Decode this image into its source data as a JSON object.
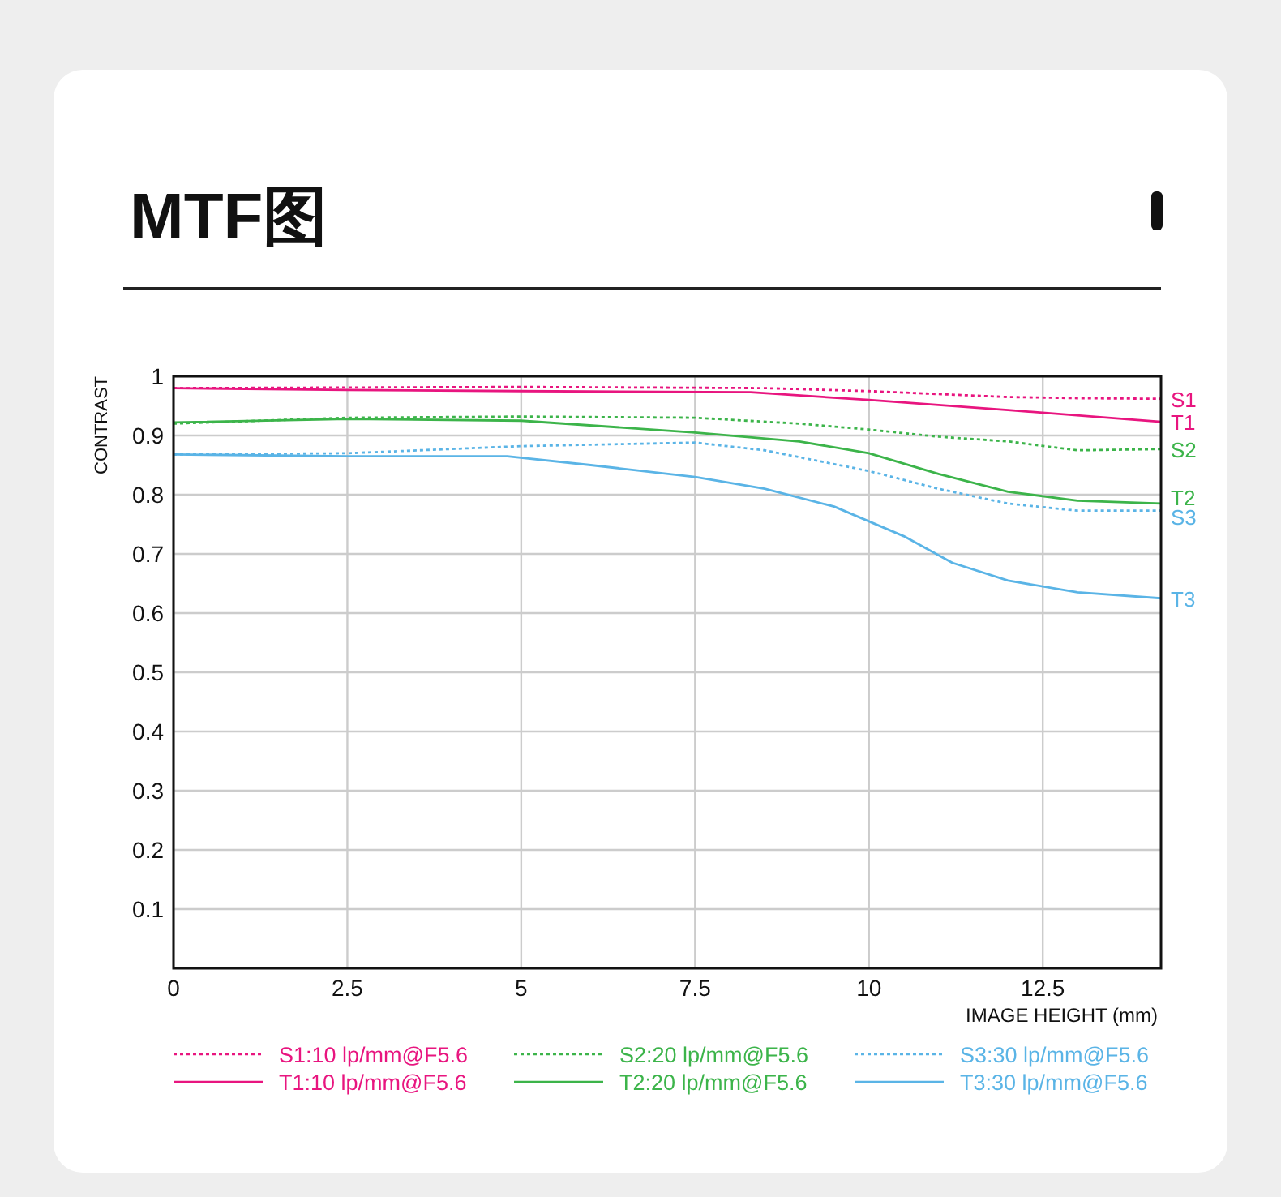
{
  "chart_data": {
    "type": "line",
    "title": "MTF图",
    "xlabel": "IMAGE HEIGHT (mm)",
    "ylabel": "CONTRAST",
    "xlim": [
      0,
      14.2
    ],
    "ylim": [
      0,
      1
    ],
    "xticks": [
      0,
      2.5,
      5,
      7.5,
      10,
      12.5
    ],
    "yticks": [
      0.1,
      0.2,
      0.3,
      0.4,
      0.5,
      0.6,
      0.7,
      0.8,
      0.9,
      1
    ],
    "grid": true,
    "legend": "bottom",
    "marker": "none",
    "series": [
      {
        "name": "S1:10 lp/mm@F5.6",
        "color": "#e8157f",
        "line_style": "dotted",
        "x": [
          0,
          5,
          8.5,
          10,
          12,
          13,
          14.2
        ],
        "values": [
          0.98,
          0.982,
          0.98,
          0.975,
          0.965,
          0.963,
          0.962
        ]
      },
      {
        "name": "T1:10 lp/mm@F5.6",
        "color": "#e8157f",
        "line_style": "solid",
        "x": [
          0,
          2.5,
          5,
          8.3,
          10,
          12,
          14.2
        ],
        "values": [
          0.98,
          0.977,
          0.975,
          0.973,
          0.96,
          0.943,
          0.923
        ]
      },
      {
        "name": "S2:20 lp/mm@F5.6",
        "color": "#3cb44a",
        "line_style": "dotted",
        "x": [
          0,
          2.5,
          5,
          7.5,
          9,
          10,
          11,
          12,
          13,
          14.2
        ],
        "values": [
          0.92,
          0.93,
          0.932,
          0.93,
          0.92,
          0.91,
          0.898,
          0.89,
          0.875,
          0.877
        ]
      },
      {
        "name": "T2:20 lp/mm@F5.6",
        "color": "#3cb44a",
        "line_style": "solid",
        "x": [
          0,
          2.5,
          5,
          7.5,
          9,
          10,
          11,
          12,
          13,
          14.2
        ],
        "values": [
          0.922,
          0.928,
          0.925,
          0.905,
          0.89,
          0.87,
          0.835,
          0.805,
          0.79,
          0.785
        ]
      },
      {
        "name": "S3:30 lp/mm@F5.6",
        "color": "#5ab4e6",
        "line_style": "dotted",
        "x": [
          0,
          2.5,
          5,
          7.5,
          8.5,
          10,
          11,
          12,
          13,
          14.2
        ],
        "values": [
          0.868,
          0.87,
          0.882,
          0.888,
          0.875,
          0.84,
          0.81,
          0.785,
          0.773,
          0.773
        ]
      },
      {
        "name": "T3:30 lp/mm@F5.6",
        "color": "#5ab4e6",
        "line_style": "solid",
        "x": [
          0,
          2.5,
          4.8,
          6,
          7.5,
          8.5,
          9.5,
          10.5,
          11.2,
          12,
          13,
          14.2
        ],
        "values": [
          0.868,
          0.865,
          0.865,
          0.85,
          0.83,
          0.81,
          0.78,
          0.73,
          0.685,
          0.655,
          0.635,
          0.625
        ]
      }
    ],
    "annotations": [
      "S1",
      "T1",
      "S2",
      "T2",
      "S3",
      "T3"
    ]
  }
}
